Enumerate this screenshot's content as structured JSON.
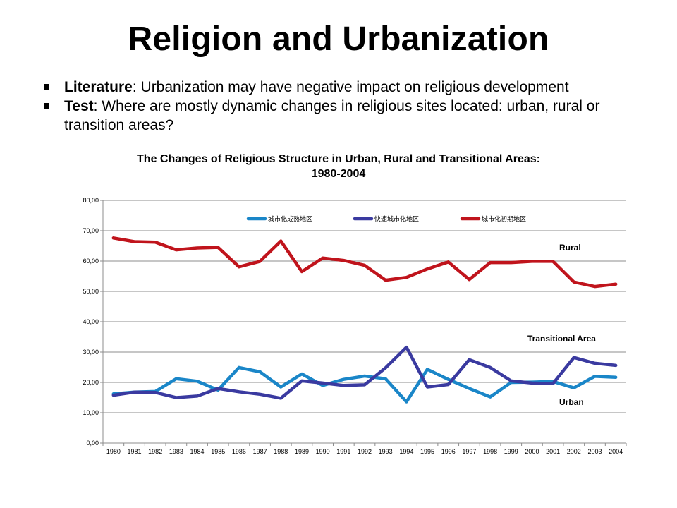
{
  "slide": {
    "title": "Religion and Urbanization",
    "bullets": [
      {
        "label": "Literature",
        "text": ": Urbanization may have negative impact on religious development"
      },
      {
        "label": "Test",
        "text": ":  Where are mostly dynamic changes in religious sites located: urban, rural or transition areas?"
      }
    ]
  },
  "chart_data": {
    "type": "line",
    "title_line1": "The Changes of Religious Structure in Urban, Rural and Transitional Areas:",
    "title_line2": "1980-2004",
    "categories": [
      "1980",
      "1981",
      "1982",
      "1983",
      "1984",
      "1985",
      "1986",
      "1987",
      "1988",
      "1989",
      "1990",
      "1991",
      "1992",
      "1993",
      "1994",
      "1995",
      "1996",
      "1997",
      "1998",
      "1999",
      "2000",
      "2001",
      "2002",
      "2003",
      "2004"
    ],
    "y_ticks": [
      "0,00",
      "10,00",
      "20,00",
      "30,00",
      "40,00",
      "50,00",
      "60,00",
      "70,00",
      "80,00"
    ],
    "ylim": [
      0,
      80
    ],
    "grid": true,
    "legend_position": "top",
    "series": [
      {
        "name": "城市化成熟地区",
        "color": "#1a86c8",
        "values": [
          16.2,
          16.8,
          17.0,
          21.2,
          20.4,
          17.5,
          24.9,
          23.5,
          18.5,
          22.8,
          19.0,
          21.0,
          22.1,
          21.2,
          13.6,
          24.3,
          21.0,
          18.0,
          15.2,
          20.0,
          20.1,
          20.3,
          18.2,
          22.0,
          21.7
        ]
      },
      {
        "name": "快速城市化地区",
        "color": "#3a3aa0",
        "values": [
          15.8,
          16.8,
          16.7,
          15.0,
          15.5,
          18.0,
          16.9,
          16.1,
          14.8,
          20.5,
          19.8,
          19.0,
          19.2,
          24.8,
          31.6,
          18.5,
          19.3,
          27.5,
          24.9,
          20.5,
          19.8,
          19.6,
          28.2,
          26.3,
          25.6
        ]
      },
      {
        "name": "城市化初期地区",
        "color": "#c0141c",
        "values": [
          67.6,
          66.4,
          66.2,
          63.7,
          64.3,
          64.5,
          58.1,
          59.9,
          66.6,
          56.5,
          61.0,
          60.2,
          58.6,
          53.7,
          54.6,
          57.4,
          59.7,
          53.9,
          59.5,
          59.5,
          59.9,
          59.9,
          53.1,
          51.6,
          52.4
        ]
      }
    ],
    "annotations": {
      "rural": "Rural",
      "transitional": "Transitional Area",
      "urban": "Urban"
    }
  }
}
